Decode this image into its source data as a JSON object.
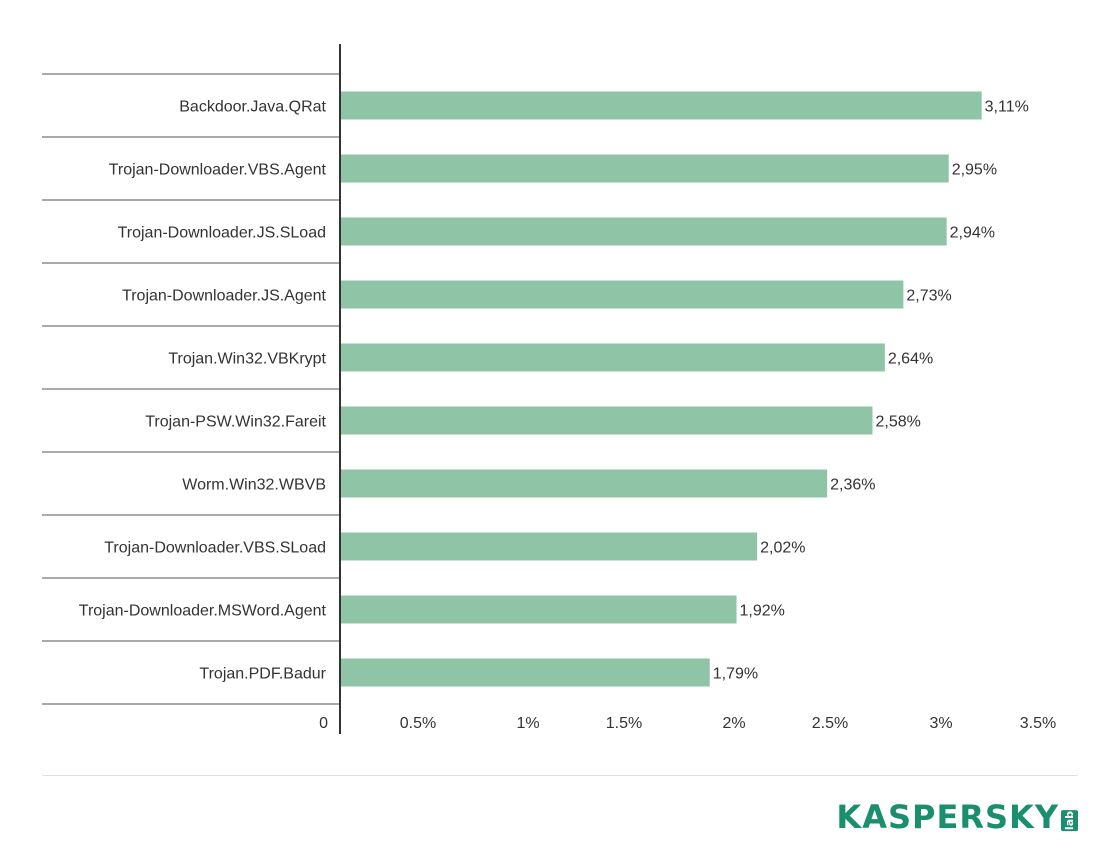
{
  "chart_data": {
    "type": "bar",
    "orientation": "horizontal",
    "categories": [
      "Backdoor.Java.QRat",
      "Trojan-Downloader.VBS.Agent",
      "Trojan-Downloader.JS.SLoad",
      "Trojan-Downloader.JS.Agent",
      "Trojan.Win32.VBKrypt",
      "Trojan-PSW.Win32.Fareit",
      "Worm.Win32.WBVB",
      "Trojan-Downloader.VBS.SLoad",
      "Trojan-Downloader.MSWord.Agent",
      "Trojan.PDF.Badur"
    ],
    "values": [
      3.11,
      2.95,
      2.94,
      2.73,
      2.64,
      2.58,
      2.36,
      2.02,
      1.92,
      1.79
    ],
    "value_labels": [
      "3,11%",
      "2,95%",
      "2,94%",
      "2,73%",
      "2,64%",
      "2,58%",
      "2,36%",
      "2,02%",
      "1,92%",
      "1,79%"
    ],
    "xticks": [
      0,
      0.5,
      1,
      1.5,
      2,
      2.5,
      3,
      3.5
    ],
    "xtick_labels": [
      "0",
      "0.5%",
      "1%",
      "1.5%",
      "2%",
      "2.5%",
      "3%",
      "3.5%"
    ],
    "xlim": [
      0,
      3.5
    ],
    "bar_color": "#8fc4a7",
    "title": "",
    "xlabel": "",
    "ylabel": ""
  },
  "footer": {
    "logo_text": "KASPERSKY",
    "logo_suffix": "lab",
    "logo_color": "#1a8f6e"
  }
}
